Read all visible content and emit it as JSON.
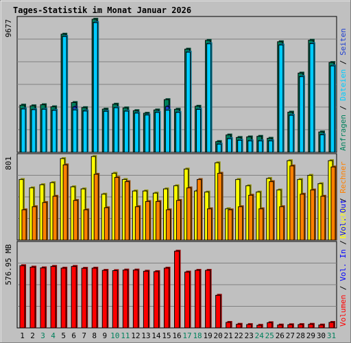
{
  "title": "Tages-Statistik im Monat Januar 2026",
  "colors": {
    "background": "#c0c0c0",
    "title": "#0000ff",
    "weekday_tick": "#000000",
    "weekend_tick": "#00805c",
    "anfragen": "#00805c",
    "dateien": "#00ccff",
    "seiten": "#1f3fcf",
    "besuche": "#ffff00",
    "rechner": "#ff8000",
    "volumen": "#ff0000",
    "in": "#0000ff",
    "out": "#0000ff",
    "separator": "#000000"
  },
  "chart_data": [
    {
      "type": "bar",
      "panel": "top",
      "ymax_label": "9677",
      "ylim": [
        0,
        9677
      ],
      "categories": [
        "1",
        "2",
        "3",
        "4",
        "5",
        "6",
        "7",
        "8",
        "9",
        "10",
        "11",
        "12",
        "13",
        "14",
        "15",
        "16",
        "17",
        "18",
        "19",
        "20",
        "21",
        "22",
        "23",
        "24",
        "25",
        "26",
        "27",
        "28",
        "29",
        "30",
        "31"
      ],
      "weekend_days": [
        "3",
        "4",
        "10",
        "11",
        "17",
        "18",
        "24",
        "25",
        "31"
      ],
      "side_label_parts": [
        {
          "text": "Anfragen",
          "color": "anfragen"
        },
        {
          "text": " / ",
          "color": "separator"
        },
        {
          "text": "Dateien",
          "color": "dateien"
        },
        {
          "text": " / ",
          "color": "separator"
        },
        {
          "text": "Seiten",
          "color": "seiten"
        }
      ],
      "series": [
        {
          "name": "Anfragen",
          "color_key": "anfragen",
          "values": [
            3430,
            3380,
            3460,
            3310,
            8590,
            3620,
            3250,
            9677,
            3140,
            3500,
            3230,
            3030,
            2840,
            3080,
            3830,
            3130,
            7500,
            3350,
            8140,
            780,
            1260,
            1080,
            1120,
            1160,
            1020,
            8040,
            2920,
            5760,
            8150,
            1480,
            6530
          ]
        },
        {
          "name": "Seiten",
          "color_key": "seiten",
          "values": [
            3160,
            3110,
            3140,
            3060,
            8430,
            3300,
            3020,
            9450,
            2990,
            3250,
            3000,
            2860,
            2720,
            2910,
            3330,
            2910,
            7290,
            3130,
            7900,
            600,
            1000,
            880,
            840,
            840,
            840,
            7810,
            2700,
            5510,
            7910,
            1280,
            6290
          ]
        },
        {
          "name": "Dateien",
          "color_key": "dateien",
          "values": [
            3150,
            3100,
            3130,
            3050,
            8420,
            3080,
            3000,
            9430,
            2980,
            3240,
            2990,
            2850,
            2710,
            2900,
            3060,
            2900,
            7280,
            3120,
            7890,
            590,
            990,
            870,
            830,
            830,
            830,
            7800,
            2690,
            5500,
            7900,
            1270,
            6280
          ]
        }
      ]
    },
    {
      "type": "bar",
      "panel": "middle",
      "ymax_label": "801",
      "ylim": [
        0,
        801
      ],
      "categories": [
        "1",
        "2",
        "3",
        "4",
        "5",
        "6",
        "7",
        "8",
        "9",
        "10",
        "11",
        "12",
        "13",
        "14",
        "15",
        "16",
        "17",
        "18",
        "19",
        "20",
        "21",
        "22",
        "23",
        "24",
        "25",
        "26",
        "27",
        "28",
        "29",
        "30",
        "31"
      ],
      "side_label_parts": [
        {
          "text": "Besuche",
          "color": "besuche"
        },
        {
          "text": " / ",
          "color": "separator"
        },
        {
          "text": "Rechner",
          "color": "rechner"
        }
      ],
      "series": [
        {
          "name": "Besuche",
          "color_key": "besuche",
          "values": [
            580,
            500,
            530,
            550,
            780,
            510,
            490,
            800,
            440,
            640,
            580,
            470,
            470,
            450,
            490,
            520,
            680,
            470,
            460,
            740,
            300,
            580,
            520,
            460,
            590,
            480,
            760,
            580,
            620,
            540,
            760
          ]
        },
        {
          "name": "Rechner",
          "color_key": "rechner",
          "values": [
            290,
            320,
            360,
            420,
            720,
            380,
            290,
            630,
            310,
            600,
            560,
            320,
            370,
            370,
            290,
            380,
            500,
            580,
            300,
            640,
            290,
            320,
            430,
            300,
            560,
            320,
            710,
            440,
            480,
            420,
            700
          ]
        }
      ]
    },
    {
      "type": "bar",
      "panel": "bottom",
      "ymax_label": "576.95 MB",
      "ylim": [
        0,
        576.95
      ],
      "categories": [
        "1",
        "2",
        "3",
        "4",
        "5",
        "6",
        "7",
        "8",
        "9",
        "10",
        "11",
        "12",
        "13",
        "14",
        "15",
        "16",
        "17",
        "18",
        "19",
        "20",
        "21",
        "22",
        "23",
        "24",
        "25",
        "26",
        "27",
        "28",
        "29",
        "30",
        "31"
      ],
      "side_label_parts": [
        {
          "text": "Volumen",
          "color": "volumen"
        },
        {
          "text": " / ",
          "color": "separator"
        },
        {
          "text": "Vol. In",
          "color": "in"
        },
        {
          "text": " / ",
          "color": "separator"
        },
        {
          "text": "Vol. Out",
          "color": "out"
        }
      ],
      "series": [
        {
          "name": "Volumen",
          "color_key": "volumen",
          "values": [
            429,
            419,
            414,
            424,
            412,
            424,
            411,
            412,
            397,
            395,
            399,
            399,
            391,
            388,
            412,
            529,
            385,
            397,
            397,
            225,
            38,
            25,
            23,
            18,
            36,
            20,
            22,
            23,
            25,
            20,
            38
          ]
        }
      ]
    }
  ]
}
